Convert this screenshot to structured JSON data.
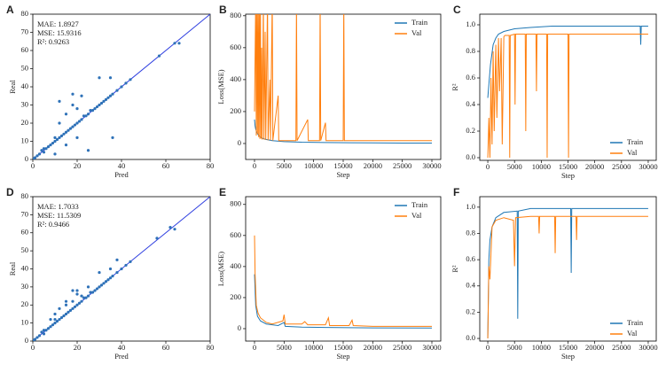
{
  "chart_data": [
    {
      "type": "scatter",
      "panel": "A",
      "xlabel": "Pred",
      "ylabel": "Real",
      "annotations": [
        "MAE: 1.8927",
        "MSE: 15.9316",
        "R²: 0.9263"
      ],
      "xlim": [
        0,
        80
      ],
      "ylim": [
        0,
        80
      ],
      "xticks": [
        0,
        20,
        40,
        60,
        80
      ],
      "yticks": [
        0,
        10,
        20,
        30,
        40,
        50,
        60,
        70,
        80
      ],
      "color": "#2f72b8",
      "line_color": "#3040e0",
      "identity_line": true,
      "x": [
        0.5,
        1,
        2,
        3,
        4,
        5,
        5,
        6,
        7,
        8,
        9,
        10,
        10,
        11,
        12,
        12,
        13,
        14,
        15,
        15,
        16,
        17,
        18,
        18,
        19,
        20,
        20,
        21,
        22,
        23,
        24,
        25,
        26,
        27,
        28,
        29,
        30,
        31,
        32,
        33,
        34,
        35,
        36,
        38,
        40,
        42,
        44,
        57,
        64,
        66,
        12,
        15,
        20,
        25,
        30,
        35,
        36,
        10,
        18,
        22
      ],
      "values": [
        0.5,
        1,
        2,
        3,
        5,
        4,
        6,
        6,
        7,
        8,
        9,
        10,
        12,
        11,
        12,
        20,
        13,
        14,
        15,
        25,
        16,
        17,
        18,
        30,
        19,
        20,
        28,
        21,
        22,
        24,
        24,
        25,
        27,
        27,
        28,
        29,
        30,
        31,
        32,
        33,
        34,
        35,
        36,
        38,
        40,
        42,
        44,
        57,
        64,
        64,
        32,
        8,
        12,
        5,
        45,
        45,
        12,
        3,
        36,
        35
      ]
    },
    {
      "type": "line",
      "panel": "B",
      "xlabel": "Step",
      "ylabel": "Loss(MSE)",
      "legend": "upper right",
      "xlim": [
        -1500,
        31500
      ],
      "ylim": [
        -100,
        810
      ],
      "xticks": [
        0,
        5000,
        10000,
        15000,
        20000,
        25000,
        30000
      ],
      "yticks": [
        0,
        200,
        400,
        600,
        800
      ],
      "series": [
        {
          "name": "Train",
          "color": "#1f77b4",
          "x": [
            0,
            100,
            200,
            400,
            700,
            1000,
            1500,
            2000,
            3000,
            5000,
            8000,
            12000,
            16000,
            20000,
            25000,
            30000
          ],
          "values": [
            150,
            110,
            90,
            70,
            50,
            40,
            30,
            25,
            18,
            12,
            8,
            6,
            5,
            4,
            3,
            3
          ]
        },
        {
          "name": "Val",
          "color": "#ff7f0e",
          "x": [
            0,
            200,
            300,
            400,
            500,
            600,
            700,
            800,
            900,
            1000,
            1100,
            1200,
            1300,
            1500,
            1600,
            1800,
            1900,
            2200,
            2300,
            2600,
            2700,
            3000,
            3100,
            4000,
            4100,
            5000,
            7000,
            7100,
            7200,
            9000,
            9100,
            11000,
            11100,
            11200,
            12000,
            12100,
            15000,
            15100,
            15200,
            20000,
            25000,
            30000
          ],
          "values": [
            200,
            900,
            50,
            900,
            60,
            900,
            40,
            900,
            30,
            900,
            30,
            600,
            25,
            900,
            25,
            700,
            22,
            900,
            20,
            400,
            20,
            900,
            18,
            300,
            18,
            18,
            18,
            900,
            18,
            150,
            18,
            18,
            900,
            18,
            130,
            18,
            18,
            900,
            18,
            18,
            18,
            18
          ]
        }
      ]
    },
    {
      "type": "line",
      "panel": "C",
      "xlabel": "Step",
      "ylabel": "R²",
      "legend": "lower right",
      "xlim": [
        -1500,
        31500
      ],
      "ylim": [
        -0.02,
        1.08
      ],
      "xticks": [
        0,
        5000,
        10000,
        15000,
        20000,
        25000,
        30000
      ],
      "yticks": [
        {
          "value": 0,
          "label": "0.0"
        },
        0.2,
        0.4,
        0.6,
        0.8,
        {
          "value": 1,
          "label": "1.0"
        }
      ],
      "series": [
        {
          "name": "Train",
          "color": "#1f77b4",
          "x": [
            0,
            200,
            500,
            1000,
            1500,
            2000,
            3000,
            5000,
            8000,
            12000,
            20000,
            28500,
            28600,
            28700,
            30000
          ],
          "values": [
            0.45,
            0.55,
            0.7,
            0.85,
            0.9,
            0.93,
            0.95,
            0.97,
            0.98,
            0.99,
            0.99,
            0.99,
            0.85,
            0.99,
            0.99
          ]
        },
        {
          "name": "Val",
          "color": "#ff7f0e",
          "x": [
            0,
            200,
            400,
            600,
            800,
            1000,
            1200,
            1500,
            1700,
            2000,
            2200,
            2500,
            2700,
            3000,
            3200,
            4000,
            4100,
            4200,
            5000,
            5100,
            5200,
            7000,
            7100,
            7200,
            9000,
            9100,
            9200,
            11000,
            11100,
            11200,
            15000,
            15100,
            15200,
            20000,
            30000
          ],
          "values": [
            0,
            0.3,
            0,
            0.6,
            0.1,
            0.8,
            0.2,
            0.85,
            0.3,
            0.9,
            0.5,
            0.9,
            0.1,
            0.91,
            0.92,
            0.92,
            0,
            0.92,
            0.93,
            0.4,
            0.93,
            0.93,
            0.2,
            0.93,
            0.93,
            0.5,
            0.93,
            0.93,
            0,
            0.93,
            0.93,
            0,
            0.93,
            0.93,
            0.93
          ]
        }
      ]
    },
    {
      "type": "scatter",
      "panel": "D",
      "xlabel": "Pred",
      "ylabel": "Real",
      "annotations": [
        "MAE: 1.7033",
        "MSE: 11.5309",
        "R²: 0.9466"
      ],
      "xlim": [
        0,
        80
      ],
      "ylim": [
        0,
        80
      ],
      "xticks": [
        0,
        20,
        40,
        60,
        80
      ],
      "yticks": [
        0,
        10,
        20,
        30,
        40,
        50,
        60,
        70,
        80
      ],
      "color": "#2f72b8",
      "line_color": "#3040e0",
      "identity_line": true,
      "x": [
        0.5,
        1,
        2,
        3,
        4,
        5,
        5,
        6,
        7,
        8,
        9,
        10,
        10,
        11,
        12,
        12,
        13,
        14,
        15,
        15,
        16,
        17,
        18,
        18,
        19,
        20,
        20,
        21,
        22,
        23,
        24,
        25,
        26,
        27,
        28,
        29,
        30,
        31,
        32,
        33,
        34,
        35,
        36,
        38,
        40,
        42,
        44,
        56,
        62,
        64,
        15,
        22,
        10,
        25,
        35,
        38,
        20,
        8,
        30,
        18
      ],
      "values": [
        0.5,
        1,
        2,
        3,
        5,
        4,
        6,
        6,
        7,
        8,
        9,
        10,
        12,
        11,
        12,
        18,
        13,
        14,
        15,
        22,
        16,
        17,
        18,
        28,
        19,
        20,
        26,
        21,
        22,
        24,
        24,
        25,
        27,
        27,
        28,
        29,
        30,
        31,
        32,
        33,
        34,
        35,
        36,
        38,
        40,
        42,
        44,
        57,
        63,
        62,
        20,
        25,
        15,
        30,
        40,
        45,
        28,
        12,
        38,
        22
      ]
    },
    {
      "type": "line",
      "panel": "E",
      "xlabel": "Step",
      "ylabel": "Loss(MSE)",
      "legend": "upper right",
      "xlim": [
        -1500,
        31500
      ],
      "ylim": [
        -80,
        850
      ],
      "xticks": [
        0,
        5000,
        10000,
        15000,
        20000,
        25000,
        30000
      ],
      "yticks": [
        0,
        200,
        400,
        600,
        800
      ],
      "series": [
        {
          "name": "Train",
          "color": "#1f77b4",
          "x": [
            0,
            200,
            500,
            1000,
            2000,
            4000,
            5000,
            5200,
            8000,
            12000,
            20000,
            30000
          ],
          "values": [
            350,
            150,
            80,
            50,
            30,
            20,
            40,
            15,
            10,
            8,
            5,
            4
          ]
        },
        {
          "name": "Val",
          "color": "#ff7f0e",
          "x": [
            0,
            100,
            300,
            600,
            1000,
            2000,
            3000,
            4800,
            5000,
            5200,
            8000,
            8500,
            9000,
            12000,
            12500,
            12700,
            16000,
            16500,
            16700,
            20000,
            30000
          ],
          "values": [
            600,
            350,
            150,
            100,
            70,
            40,
            30,
            50,
            90,
            30,
            30,
            45,
            25,
            25,
            70,
            20,
            20,
            55,
            20,
            15,
            15
          ]
        }
      ]
    },
    {
      "type": "line",
      "panel": "F",
      "xlabel": "Step",
      "ylabel": "R²",
      "legend": "lower right",
      "xlim": [
        -1500,
        31500
      ],
      "ylim": [
        -0.02,
        1.08
      ],
      "xticks": [
        0,
        5000,
        10000,
        15000,
        20000,
        25000,
        30000
      ],
      "yticks": [
        {
          "value": 0,
          "label": "0.0"
        },
        0.2,
        0.4,
        0.6,
        0.8,
        {
          "value": 1,
          "label": "1.0"
        }
      ],
      "series": [
        {
          "name": "Train",
          "color": "#1f77b4",
          "x": [
            0,
            200,
            400,
            800,
            1500,
            3000,
            5500,
            5600,
            5700,
            8000,
            15500,
            15600,
            15700,
            20000,
            30000
          ],
          "values": [
            0,
            0.6,
            0.75,
            0.85,
            0.92,
            0.96,
            0.97,
            0.15,
            0.97,
            0.99,
            0.99,
            0.5,
            0.99,
            0.99,
            0.99
          ]
        },
        {
          "name": "Val",
          "color": "#ff7f0e",
          "x": [
            0,
            200,
            400,
            800,
            1500,
            3000,
            4800,
            5000,
            5200,
            8000,
            9500,
            9600,
            9700,
            12500,
            12600,
            12700,
            16500,
            16600,
            16700,
            30000
          ],
          "values": [
            0,
            0.55,
            0.45,
            0.85,
            0.9,
            0.92,
            0.9,
            0.55,
            0.92,
            0.93,
            0.93,
            0.8,
            0.93,
            0.93,
            0.65,
            0.93,
            0.93,
            0.75,
            0.93,
            0.93
          ]
        }
      ]
    }
  ]
}
